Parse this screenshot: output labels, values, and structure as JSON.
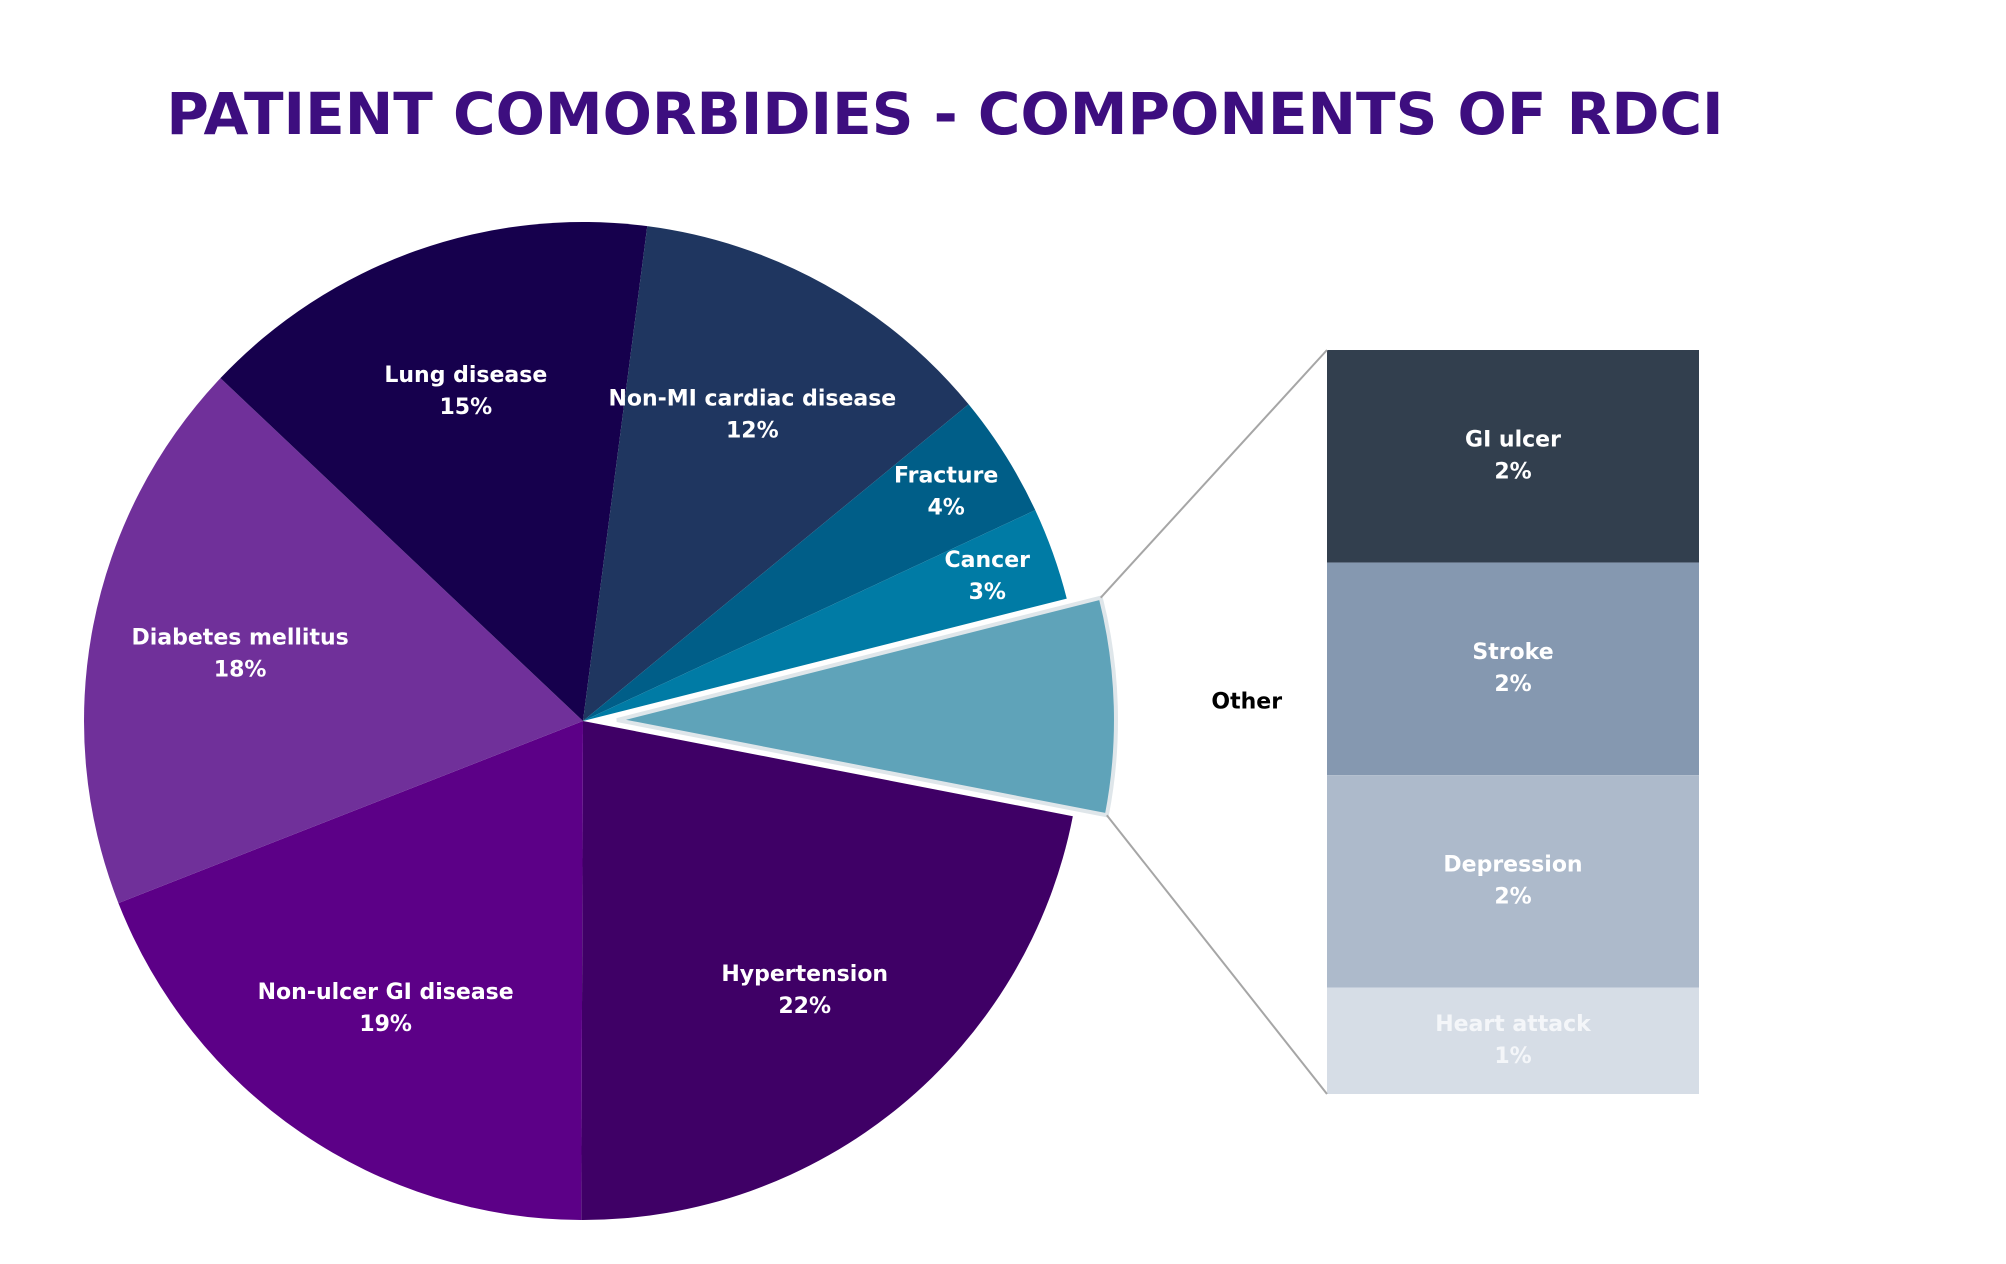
{
  "chart_data": {
    "type": "pie-of-bar",
    "title": "PATIENT COMORBIDIES - COMPONENTS OF RDCI",
    "categories": [
      "Hypertension",
      "Non-ulcer GI disease",
      "Diabetes mellitus",
      "Lung disease",
      "Non-MI cardiac disease",
      "Fracture",
      "Cancer",
      "Other"
    ],
    "values": [
      22,
      19,
      18,
      15,
      12,
      4,
      3,
      7
    ],
    "value_labels": [
      "22%",
      "19%",
      "18%",
      "15%",
      "12%",
      "4%",
      "3%",
      null
    ],
    "colors": [
      "#3f0066",
      "#5c0087",
      "#70309a",
      "#16004d",
      "#1f3660",
      "#005e88",
      "#007ba5",
      "#5fa3b9"
    ],
    "breakdown": {
      "categories": [
        "GI ulcer",
        "Stroke",
        "Depression",
        "Heart attack"
      ],
      "values": [
        2,
        2,
        2,
        1
      ],
      "value_labels": [
        "2%",
        "2%",
        "2%",
        "1%"
      ],
      "colors": [
        "#323f4e",
        "#8598b0",
        "#adbacb",
        "#d6dde6"
      ]
    }
  }
}
